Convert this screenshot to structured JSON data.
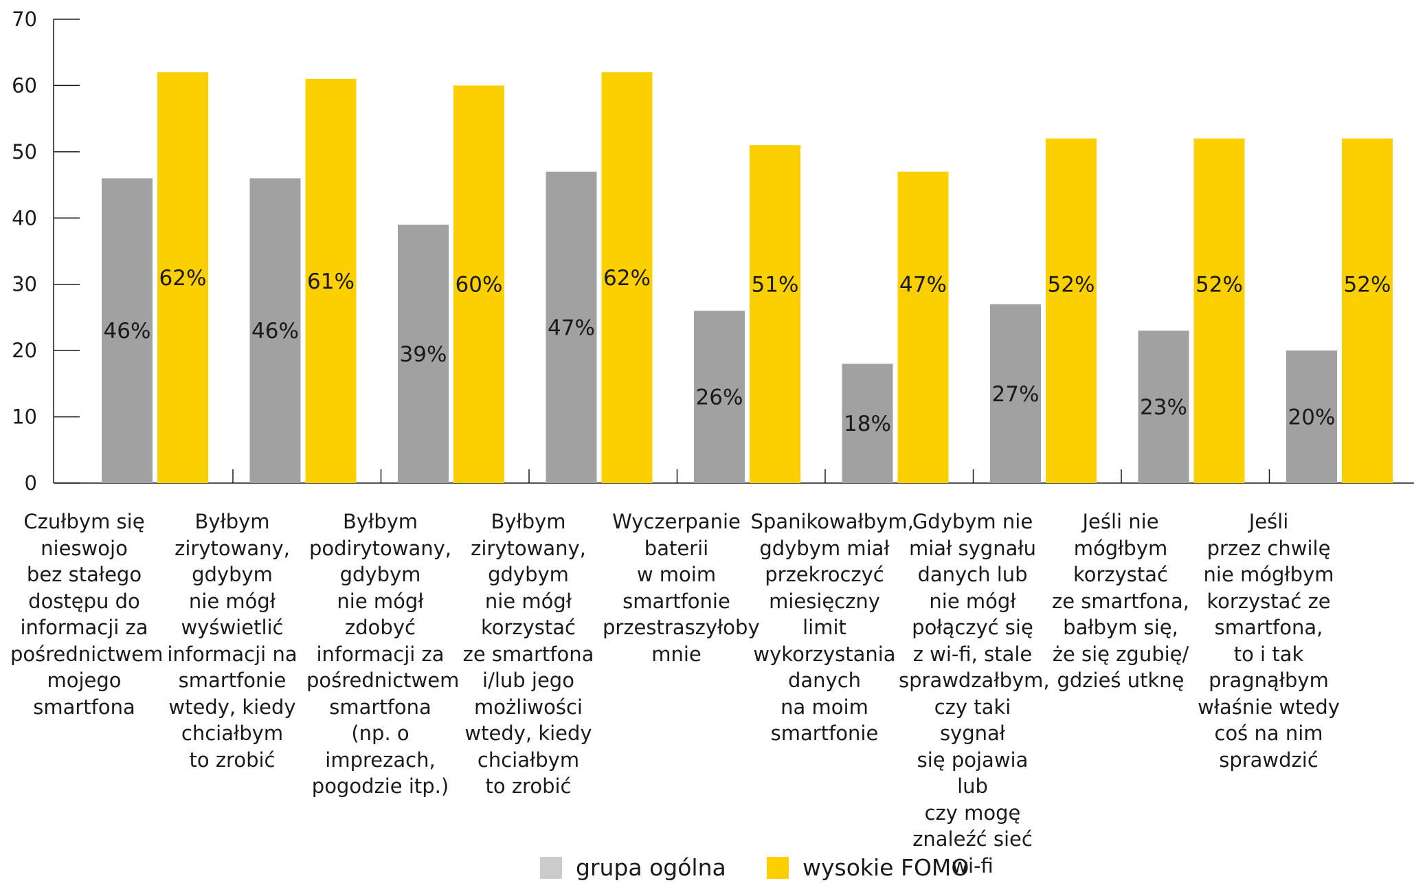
{
  "chart_data": {
    "type": "bar",
    "categories": [
      "Czułbym się\nnieswojo\nbez stałego\ndostępu do\ninformacji za\npośrednictwem\nmojego\nsmartfona",
      "Byłbym\nzirytowany,\ngdybym\nnie mógł\nwyświetlić\ninformacji na\nsmartfonie\nwtedy, kiedy\nchciałbym\nto zrobić",
      "Byłbym\npodirytowany,\ngdybym\nnie mógł\nzdobyć\ninformacji za\npośrednictwem\nsmartfona\n(np. o imprezach,\npogodzie itp.)",
      "Byłbym\nzirytowany,\ngdybym\nnie mógł\nkorzystać\nze smartfona\ni/lub jego\nmożliwości\nwtedy, kiedy\nchciałbym\nto zrobić",
      "Wyczerpanie\nbaterii\nw moim\nsmartfonie\nprzestraszyłoby\nmnie",
      "Spanikowałbym,\ngdybym miał\nprzekroczyć\nmiesięczny\nlimit\nwykorzystania\ndanych\nna moim\nsmartfonie",
      "Gdybym nie\nmiał sygnału\ndanych lub\nnie mógł\npołączyć się\nz wi-fi, stale\nsprawdzałbym,\nczy taki sygnał\nsię pojawia lub\nczy mogę\nznaleźć sieć wi-fi",
      "Jeśli nie\nmógłbym\nkorzystać\nze smartfona,\nbałbym się,\nże się zgubię/\ngdzieś utknę",
      "Jeśli\nprzez chwilę\nnie mógłbym\nkorzystać ze\nsmartfona,\nto i tak\npragnąłbym\nwłaśnie wtedy\ncoś na nim\nsprawdzić"
    ],
    "series": [
      {
        "name": "grupa ogólna",
        "color": "#a1a1a1",
        "values": [
          46,
          46,
          39,
          47,
          26,
          18,
          27,
          23,
          20
        ],
        "labels": [
          "46%",
          "46%",
          "39%",
          "47%",
          "26%",
          "18%",
          "27%",
          "23%",
          "20%"
        ]
      },
      {
        "name": "wysokie FOMO",
        "color": "#fcd000",
        "values": [
          62,
          61,
          60,
          62,
          51,
          47,
          52,
          52,
          52
        ],
        "labels": [
          "62%",
          "61%",
          "60%",
          "62%",
          "51%",
          "47%",
          "52%",
          "52%",
          "52%"
        ]
      }
    ],
    "yticks": [
      "0",
      "10",
      "20",
      "30",
      "40",
      "50",
      "60",
      "70"
    ],
    "ylim": [
      0,
      70
    ],
    "grid": false,
    "legend_position": "bottom-center",
    "legend_colors": [
      "#cccccc",
      "#fcd000"
    ]
  }
}
